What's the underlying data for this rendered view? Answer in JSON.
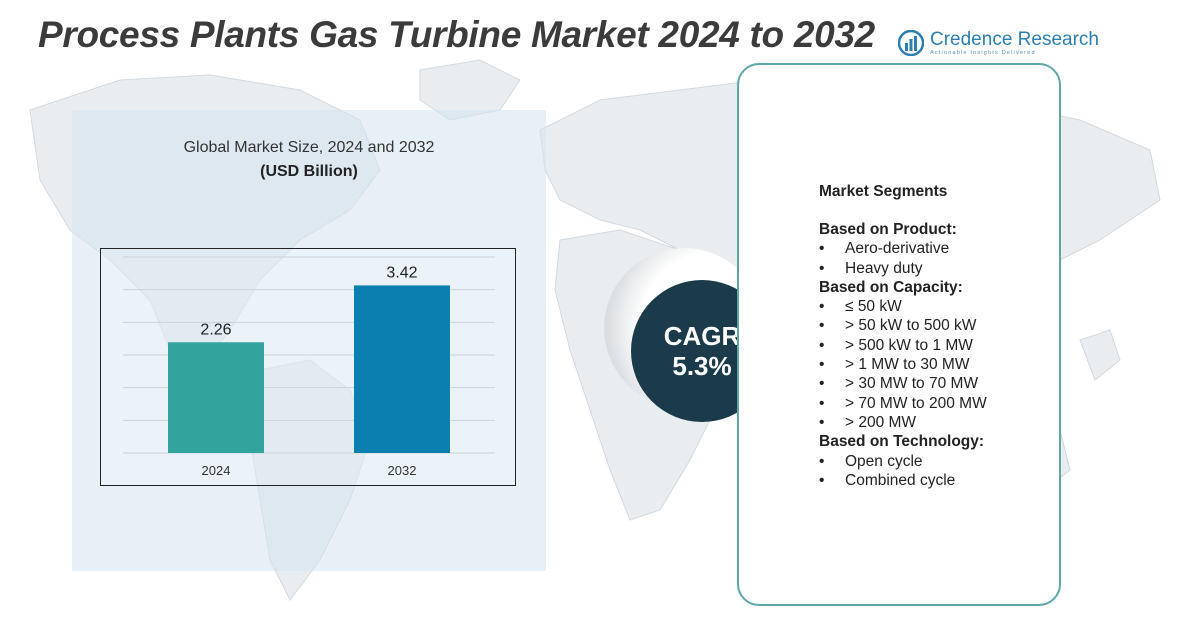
{
  "header": {
    "title": "Process Plants Gas Turbine Market 2024 to 2032",
    "brand_name": "Credence Research",
    "brand_tagline": "Actionable Insights Delivered"
  },
  "chart_data": {
    "type": "bar",
    "title": "Global Market Size,  2024 and 2032",
    "subtitle": "(USD Billion)",
    "categories": [
      "2024",
      "2032"
    ],
    "values": [
      2.26,
      3.42
    ],
    "value_labels": [
      "2.26",
      "3.42"
    ],
    "colors": [
      "#33a39e",
      "#0a7fb0"
    ],
    "ylim": [
      0,
      4
    ],
    "grid": true,
    "xlabel": "",
    "ylabel": ""
  },
  "cagr": {
    "label": "CAGR",
    "value": "5.3%"
  },
  "segments": {
    "heading": "Market Segments",
    "bullet": "•",
    "groups": [
      {
        "title": "Based on Product:",
        "items": [
          "Aero-derivative",
          "Heavy duty"
        ]
      },
      {
        "title": "Based on Capacity:",
        "items": [
          "≤ 50 kW",
          "> 50 kW to 500 kW",
          "> 500 kW to 1 MW",
          "> 1 MW to 30 MW",
          "> 30 MW to 70 MW",
          "> 70 MW to 200 MW",
          "> 200 MW"
        ]
      },
      {
        "title": "Based on Technology:",
        "items": [
          "Open cycle",
          "Combined cycle"
        ]
      }
    ]
  },
  "colors": {
    "title": "#3b3b3b",
    "brand": "#2c7fb0",
    "panel": "#d6e4f0",
    "cagr_circle": "#1b3b4a",
    "card_border": "#5fa6a6"
  },
  "icons": {
    "brand_logo": "credence-research-logo",
    "background": "world-map"
  }
}
